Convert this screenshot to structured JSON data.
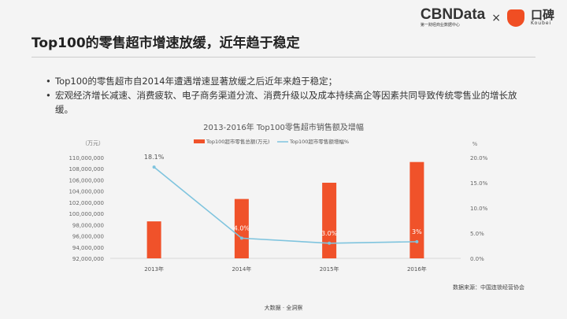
{
  "header": {
    "title": "Top100的零售超市增速放缓，近年趋于稳定",
    "logo_cbn": "CBNData",
    "logo_cbn_sub": "第一财经商业数据中心",
    "logo_x": "×",
    "logo_koubei": "口碑",
    "logo_koubei_sub": "Koubei"
  },
  "bullets": [
    "Top100的零售超市自2014年遭遇增速显著放缓之后近年来趋于稳定；",
    "宏观经济增长减速、消费疲软、电子商务渠道分流、消费升级以及成本持续高企等因素共同导致传统零售业的增长放缓。"
  ],
  "chart_data": {
    "type": "bar",
    "title": "2013-2016年 Top100零售超市销售额及增幅",
    "categories": [
      "2013年",
      "2014年",
      "2015年",
      "2016年"
    ],
    "y_left_unit": "（万元）",
    "y_right_unit": "%",
    "ylim": [
      92000000,
      110000000
    ],
    "y_ticks": [
      "92,000,000",
      "94,000,000",
      "96,000,000",
      "98,000,000",
      "100,000,000",
      "102,000,000",
      "104,000,000",
      "106,000,000",
      "108,000,000",
      "110,000,000"
    ],
    "y2lim": [
      0,
      20
    ],
    "y2_ticks": [
      "0.0%",
      "5.0%",
      "10.0%",
      "15.0%",
      "20.0%"
    ],
    "series": [
      {
        "name": "Top100超市零售总额(万元)",
        "type": "bar",
        "color": "#f0522a",
        "values": [
          98600000,
          102600000,
          105500000,
          109200000
        ]
      },
      {
        "name": "Top100超市零售额增幅%",
        "type": "line",
        "color": "#7fc4de",
        "values": [
          18.1,
          4.0,
          3.0,
          3.3
        ],
        "labels": [
          "18.1%",
          "4.0%",
          "3.0%",
          "3%"
        ]
      }
    ]
  },
  "source": "数据来源：中国连锁经营协会",
  "footer": "大数据 · 全洞察"
}
